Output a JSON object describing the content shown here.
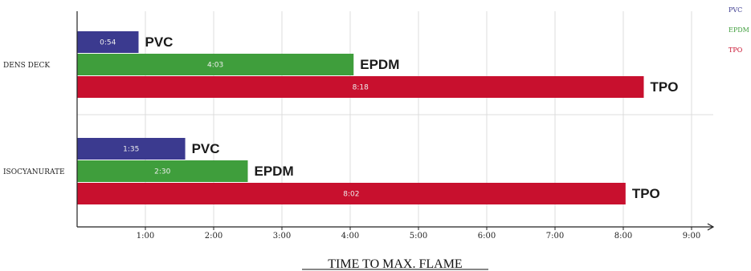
{
  "chart_data": {
    "type": "bar",
    "orientation": "horizontal",
    "xlabel": "TIME TO MAX. FLAME",
    "x_unit": "minutes",
    "xlim": [
      0,
      9.5
    ],
    "x_ticks": [
      "1:00",
      "2:00",
      "3:00",
      "4:00",
      "5:00",
      "6:00",
      "7:00",
      "8:00",
      "9:00"
    ],
    "grid": true,
    "legend_position": "top-right",
    "categories": [
      "DENS DECK",
      "ISOCYANURATE"
    ],
    "series": [
      {
        "name": "PVC",
        "color": "#3b3a8f",
        "values": [
          0.9,
          1.5833
        ],
        "labels": [
          "0:54",
          "1:35"
        ]
      },
      {
        "name": "EPDM",
        "color": "#3f9e3c",
        "values": [
          4.05,
          2.5
        ],
        "labels": [
          "4:03",
          "2:30"
        ]
      },
      {
        "name": "TPO",
        "color": "#c8102e",
        "values": [
          8.3,
          8.0333
        ],
        "labels": [
          "8:18",
          "8:02"
        ]
      }
    ]
  }
}
